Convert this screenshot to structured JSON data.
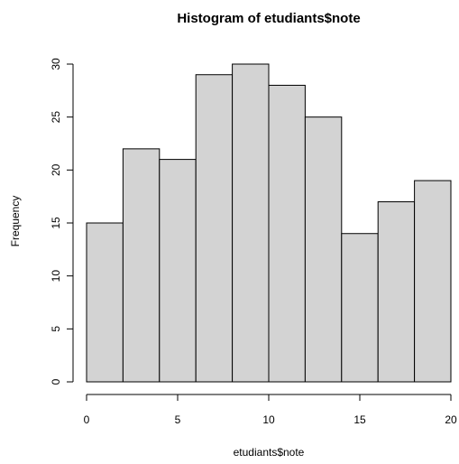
{
  "chart_data": {
    "type": "bar",
    "title": "Histogram of etudiants$note",
    "xlabel": "etudiants$note",
    "ylabel": "Frequency",
    "bins": [
      {
        "start": 0,
        "end": 2,
        "count": 15
      },
      {
        "start": 2,
        "end": 4,
        "count": 22
      },
      {
        "start": 4,
        "end": 6,
        "count": 21
      },
      {
        "start": 6,
        "end": 8,
        "count": 29
      },
      {
        "start": 8,
        "end": 10,
        "count": 30
      },
      {
        "start": 10,
        "end": 12,
        "count": 28
      },
      {
        "start": 12,
        "end": 14,
        "count": 25
      },
      {
        "start": 14,
        "end": 16,
        "count": 14
      },
      {
        "start": 16,
        "end": 18,
        "count": 17
      },
      {
        "start": 18,
        "end": 20,
        "count": 19
      }
    ],
    "xlim": [
      0,
      20
    ],
    "ylim": [
      0,
      30
    ],
    "xticks": [
      0,
      5,
      10,
      15,
      20
    ],
    "yticks": [
      0,
      5,
      10,
      15,
      20,
      25,
      30
    ],
    "grid": false,
    "legend": "none",
    "bar_fill": "#d3d3d3",
    "bar_stroke": "#000000"
  }
}
